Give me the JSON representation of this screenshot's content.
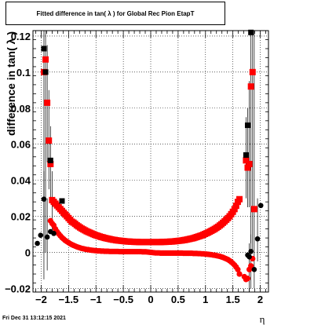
{
  "chart_data": {
    "type": "scatter",
    "title": "Fitted difference in tan( λ ) for Global Rec Pion EtapT",
    "xlabel": "η",
    "ylabel": "difference in tan( λ )",
    "xlim": [
      -2.15,
      2.15
    ],
    "ylim": [
      -0.022,
      0.123
    ],
    "x_ticks": [
      -2,
      -1.5,
      -1,
      -0.5,
      0,
      0.5,
      1,
      1.5,
      2
    ],
    "x_tick_labels": [
      "−2",
      "−1.5",
      "−1",
      "−0.5",
      "0",
      "0.5",
      "1",
      "1.5",
      "2"
    ],
    "y_ticks": [
      -0.02,
      0,
      0.02,
      0.04,
      0.06,
      0.08,
      0.1,
      0.12
    ],
    "y_tick_labels": [
      "−0.02",
      "0",
      "0.02",
      "0.04",
      "0.06",
      "0.08",
      "0.1",
      "0.12"
    ],
    "grid": true,
    "footer": "Fri Dec 31 13:12:15 2021",
    "colors": {
      "red": "#ff0000",
      "black": "#000000"
    },
    "series": [
      {
        "marker": "square",
        "color": "#ff0000",
        "points": [
          [
            -1.95,
            0.1
          ],
          [
            -1.92,
            0.107
          ],
          [
            -1.89,
            0.083
          ],
          [
            -1.86,
            0.062
          ],
          [
            -1.83,
            0.049
          ],
          [
            -1.8,
            0.029
          ],
          [
            -1.77,
            0.028
          ],
          [
            -1.74,
            0.027
          ],
          [
            -1.71,
            0.026
          ],
          [
            -1.68,
            0.025
          ],
          [
            -1.65,
            0.024
          ],
          [
            -1.62,
            0.023
          ],
          [
            -1.59,
            0.022
          ],
          [
            -1.56,
            0.021
          ],
          [
            -1.53,
            0.02
          ],
          [
            -1.5,
            0.019
          ],
          [
            -1.47,
            0.018
          ],
          [
            -1.44,
            0.017
          ],
          [
            -1.41,
            0.0165
          ],
          [
            -1.38,
            0.0158
          ],
          [
            -1.35,
            0.015
          ],
          [
            -1.32,
            0.0144
          ],
          [
            -1.29,
            0.0138
          ],
          [
            -1.26,
            0.0132
          ],
          [
            -1.23,
            0.0127
          ],
          [
            -1.2,
            0.0122
          ],
          [
            -1.17,
            0.0117
          ],
          [
            -1.14,
            0.0113
          ],
          [
            -1.11,
            0.0109
          ],
          [
            -1.08,
            0.0105
          ],
          [
            -1.05,
            0.0101
          ],
          [
            -1.02,
            0.0097
          ],
          [
            -0.99,
            0.0094
          ],
          [
            -0.96,
            0.0091
          ],
          [
            -0.93,
            0.0088
          ],
          [
            -0.9,
            0.0085
          ],
          [
            -0.87,
            0.0083
          ],
          [
            -0.84,
            0.008
          ],
          [
            -0.81,
            0.0078
          ],
          [
            -0.78,
            0.0076
          ],
          [
            -0.75,
            0.0074
          ],
          [
            -0.72,
            0.0072
          ],
          [
            -0.69,
            0.007
          ],
          [
            -0.66,
            0.0069
          ],
          [
            -0.63,
            0.0067
          ],
          [
            -0.6,
            0.0066
          ],
          [
            -0.57,
            0.0065
          ],
          [
            -0.54,
            0.0064
          ],
          [
            -0.51,
            0.0063
          ],
          [
            -0.48,
            0.0062
          ],
          [
            -0.45,
            0.0061
          ],
          [
            -0.42,
            0.006
          ],
          [
            -0.39,
            0.006
          ],
          [
            -0.36,
            0.0059
          ],
          [
            -0.33,
            0.0059
          ],
          [
            -0.3,
            0.0058
          ],
          [
            -0.27,
            0.0058
          ],
          [
            -0.24,
            0.0058
          ],
          [
            -0.21,
            0.0057
          ],
          [
            -0.18,
            0.0057
          ],
          [
            -0.15,
            0.0057
          ],
          [
            -0.12,
            0.0057
          ],
          [
            -0.09,
            0.0057
          ],
          [
            -0.06,
            0.0057
          ],
          [
            -0.03,
            0.0057
          ],
          [
            0,
            0.0057
          ],
          [
            0.03,
            0.0057
          ],
          [
            0.06,
            0.0057
          ],
          [
            0.09,
            0.0057
          ],
          [
            0.12,
            0.0057
          ],
          [
            0.15,
            0.0057
          ],
          [
            0.18,
            0.0057
          ],
          [
            0.21,
            0.0058
          ],
          [
            0.24,
            0.0058
          ],
          [
            0.27,
            0.0058
          ],
          [
            0.3,
            0.0059
          ],
          [
            0.33,
            0.0059
          ],
          [
            0.36,
            0.006
          ],
          [
            0.39,
            0.006
          ],
          [
            0.42,
            0.0061
          ],
          [
            0.45,
            0.0062
          ],
          [
            0.48,
            0.0063
          ],
          [
            0.51,
            0.0064
          ],
          [
            0.54,
            0.0065
          ],
          [
            0.57,
            0.0066
          ],
          [
            0.6,
            0.0068
          ],
          [
            0.63,
            0.0069
          ],
          [
            0.66,
            0.0071
          ],
          [
            0.69,
            0.0073
          ],
          [
            0.72,
            0.0075
          ],
          [
            0.75,
            0.0077
          ],
          [
            0.78,
            0.0079
          ],
          [
            0.81,
            0.0082
          ],
          [
            0.84,
            0.0085
          ],
          [
            0.87,
            0.0088
          ],
          [
            0.9,
            0.0091
          ],
          [
            0.93,
            0.0094
          ],
          [
            0.96,
            0.0098
          ],
          [
            0.99,
            0.0102
          ],
          [
            1.02,
            0.0106
          ],
          [
            1.05,
            0.011
          ],
          [
            1.08,
            0.0115
          ],
          [
            1.11,
            0.012
          ],
          [
            1.14,
            0.0125
          ],
          [
            1.17,
            0.013
          ],
          [
            1.2,
            0.0136
          ],
          [
            1.23,
            0.0142
          ],
          [
            1.26,
            0.0149
          ],
          [
            1.29,
            0.0156
          ],
          [
            1.32,
            0.0164
          ],
          [
            1.35,
            0.0172
          ],
          [
            1.38,
            0.0181
          ],
          [
            1.41,
            0.019
          ],
          [
            1.44,
            0.02
          ],
          [
            1.47,
            0.0212
          ],
          [
            1.5,
            0.0225
          ],
          [
            1.53,
            0.024
          ],
          [
            1.56,
            0.0258
          ],
          [
            1.59,
            0.028
          ],
          [
            1.62,
            0.0295
          ],
          [
            1.74,
            0.051
          ],
          [
            1.77,
            0.047
          ],
          [
            1.8,
            0.049
          ],
          [
            1.83,
            0.092
          ],
          [
            1.86,
            0.1
          ],
          [
            1.89,
            0.024
          ]
        ]
      },
      {
        "marker": "circle",
        "color": "#ff0000",
        "points": [
          [
            -1.83,
            0.0175
          ],
          [
            -1.8,
            0.016
          ],
          [
            -1.77,
            0.015
          ],
          [
            -1.74,
            0.013
          ],
          [
            -1.71,
            0.0115
          ],
          [
            -1.68,
            0.0103
          ],
          [
            -1.65,
            0.0092
          ],
          [
            -1.62,
            0.0082
          ],
          [
            -1.59,
            0.0074
          ],
          [
            -1.56,
            0.0066
          ],
          [
            -1.53,
            0.006
          ],
          [
            -1.5,
            0.0054
          ],
          [
            -1.47,
            0.0048
          ],
          [
            -1.44,
            0.0043
          ],
          [
            -1.41,
            0.0039
          ],
          [
            -1.38,
            0.0035
          ],
          [
            -1.35,
            0.0031
          ],
          [
            -1.32,
            0.0028
          ],
          [
            -1.29,
            0.0025
          ],
          [
            -1.26,
            0.0022
          ],
          [
            -1.23,
            0.002
          ],
          [
            -1.2,
            0.0018
          ],
          [
            -1.17,
            0.0016
          ],
          [
            -1.14,
            0.0015
          ],
          [
            -1.11,
            0.0013
          ],
          [
            -1.08,
            0.0012
          ],
          [
            -1.05,
            0.0011
          ],
          [
            -1.02,
            0.001
          ],
          [
            -0.99,
            0.0009
          ],
          [
            -0.96,
            0.0008
          ],
          [
            -0.93,
            0.0008
          ],
          [
            -0.9,
            0.0007
          ],
          [
            -0.87,
            0.0007
          ],
          [
            -0.84,
            0.0006
          ],
          [
            -0.81,
            0.0006
          ],
          [
            -0.78,
            0.0006
          ],
          [
            -0.75,
            0.0005
          ],
          [
            -0.72,
            0.0005
          ],
          [
            -0.69,
            0.0005
          ],
          [
            -0.66,
            0.0005
          ],
          [
            -0.63,
            0.0005
          ],
          [
            -0.6,
            0.0005
          ],
          [
            -0.57,
            0.0004
          ],
          [
            -0.54,
            0.0004
          ],
          [
            -0.51,
            0.0004
          ],
          [
            -0.48,
            0.0004
          ],
          [
            -0.45,
            0.0004
          ],
          [
            -0.42,
            0.0004
          ],
          [
            -0.39,
            0.0004
          ],
          [
            -0.36,
            0.0004
          ],
          [
            -0.33,
            0.0004
          ],
          [
            -0.3,
            0.0004
          ],
          [
            -0.27,
            0.0004
          ],
          [
            -0.24,
            0.0004
          ],
          [
            -0.21,
            0.0004
          ],
          [
            -0.18,
            0.0004
          ],
          [
            -0.15,
            0.0003
          ],
          [
            -0.12,
            0.0003
          ],
          [
            -0.09,
            0.0003
          ],
          [
            -0.06,
            0.0002
          ],
          [
            -0.03,
            0.0001
          ],
          [
            0,
            0
          ],
          [
            0.03,
            -0.0001
          ],
          [
            0.06,
            -0.0002
          ],
          [
            0.09,
            -0.0003
          ],
          [
            0.12,
            -0.0003
          ],
          [
            0.15,
            -0.0003
          ],
          [
            0.18,
            -0.0004
          ],
          [
            0.21,
            -0.0004
          ],
          [
            0.24,
            -0.0004
          ],
          [
            0.27,
            -0.0004
          ],
          [
            0.3,
            -0.0004
          ],
          [
            0.33,
            -0.0004
          ],
          [
            0.36,
            -0.0004
          ],
          [
            0.39,
            -0.0004
          ],
          [
            0.42,
            -0.0004
          ],
          [
            0.45,
            -0.0004
          ],
          [
            0.48,
            -0.0004
          ],
          [
            0.51,
            -0.0004
          ],
          [
            0.54,
            -0.0004
          ],
          [
            0.57,
            -0.0004
          ],
          [
            0.6,
            -0.0005
          ],
          [
            0.63,
            -0.0005
          ],
          [
            0.66,
            -0.0005
          ],
          [
            0.69,
            -0.0005
          ],
          [
            0.72,
            -0.0005
          ],
          [
            0.75,
            -0.0005
          ],
          [
            0.78,
            -0.0006
          ],
          [
            0.81,
            -0.0006
          ],
          [
            0.84,
            -0.0006
          ],
          [
            0.87,
            -0.0007
          ],
          [
            0.9,
            -0.0007
          ],
          [
            0.93,
            -0.0008
          ],
          [
            0.96,
            -0.0008
          ],
          [
            0.99,
            -0.0009
          ],
          [
            1.02,
            -0.001
          ],
          [
            1.05,
            -0.0011
          ],
          [
            1.08,
            -0.0012
          ],
          [
            1.11,
            -0.0013
          ],
          [
            1.14,
            -0.0015
          ],
          [
            1.17,
            -0.0016
          ],
          [
            1.2,
            -0.0018
          ],
          [
            1.23,
            -0.002
          ],
          [
            1.26,
            -0.0022
          ],
          [
            1.29,
            -0.0025
          ],
          [
            1.32,
            -0.0028
          ],
          [
            1.35,
            -0.0032
          ],
          [
            1.38,
            -0.0036
          ],
          [
            1.41,
            -0.004
          ],
          [
            1.44,
            -0.0046
          ],
          [
            1.47,
            -0.0053
          ],
          [
            1.5,
            -0.0061
          ],
          [
            1.53,
            -0.007
          ],
          [
            1.56,
            -0.0081
          ],
          [
            1.59,
            -0.0095
          ],
          [
            1.62,
            -0.012
          ],
          [
            1.71,
            -0.0135
          ],
          [
            1.74,
            -0.015
          ],
          [
            1.77,
            -0.0145
          ],
          [
            1.8,
            -0.0095
          ],
          [
            1.83,
            -0.0075
          ],
          [
            1.86,
            -0.0035
          ]
        ]
      },
      {
        "marker": "square",
        "color": "#000000",
        "points": [
          [
            -1.95,
            0.113
          ],
          [
            -1.92,
            0.1
          ],
          [
            -1.83,
            0.051
          ],
          [
            -1.62,
            0.0285
          ],
          [
            1.74,
            0.054
          ],
          [
            1.77,
            0.0705
          ],
          [
            1.83,
            0.122
          ]
        ]
      },
      {
        "marker": "circle",
        "color": "#000000",
        "points": [
          [
            -2.07,
            0.005
          ],
          [
            -2.01,
            0.0095
          ],
          [
            -1.95,
            0.0295
          ],
          [
            -1.89,
            0.0085
          ],
          [
            -1.83,
            0.0115
          ],
          [
            -1.77,
            0.0105
          ],
          [
            1.77,
            -0.0015
          ],
          [
            1.8,
            -0.0025
          ],
          [
            1.83,
            0.0005
          ],
          [
            1.89,
            -0.0095
          ],
          [
            1.95,
            0.0075
          ],
          [
            2.01,
            0.026
          ]
        ]
      }
    ],
    "error_bars": [
      {
        "x": -1.95,
        "lo": 0.0,
        "hi": 0.123
      },
      {
        "x": -1.92,
        "lo": 0.0,
        "hi": 0.123
      },
      {
        "x": -1.89,
        "lo": 0.05,
        "hi": 0.115
      },
      {
        "x": -1.86,
        "lo": 0.035,
        "hi": 0.09
      },
      {
        "x": -1.83,
        "lo": 0.03,
        "hi": 0.07
      },
      {
        "x": -1.8,
        "lo": 0.012,
        "hi": 0.045
      },
      {
        "x": -1.95,
        "lo": -0.015,
        "hi": 0.045
      },
      {
        "x": -1.89,
        "lo": -0.01,
        "hi": 0.03
      },
      {
        "x": 1.74,
        "lo": 0.03,
        "hi": 0.075
      },
      {
        "x": 1.77,
        "lo": 0.025,
        "hi": 0.08
      },
      {
        "x": 1.8,
        "lo": 0.025,
        "hi": 0.095
      },
      {
        "x": 1.83,
        "lo": 0.005,
        "hi": 0.123
      },
      {
        "x": 1.86,
        "lo": 0.0,
        "hi": 0.123
      },
      {
        "x": 1.89,
        "lo": -0.02,
        "hi": 0.123
      },
      {
        "x": 1.8,
        "lo": -0.022,
        "hi": 0.005
      },
      {
        "x": 1.83,
        "lo": -0.02,
        "hi": 0.01
      },
      {
        "x": 1.95,
        "lo": -0.005,
        "hi": 0.03
      }
    ]
  }
}
